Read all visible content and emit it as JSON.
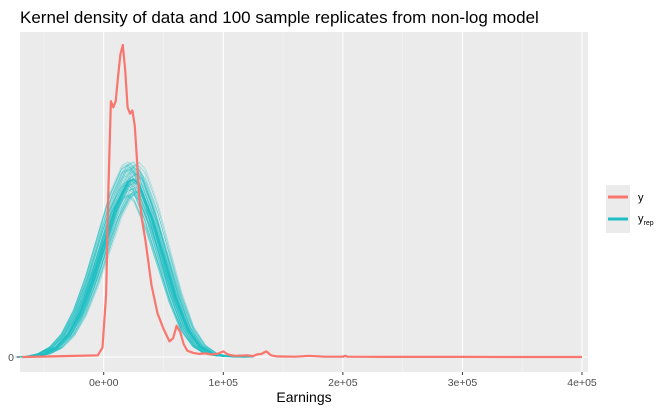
{
  "chart_data": {
    "type": "line",
    "title": "Kernel density of data and 100 sample replicates from non-log model",
    "xlabel": "Earnings",
    "ylabel": "",
    "xlim": [
      -70000,
      405000
    ],
    "ylim": [
      0,
      1
    ],
    "y_ticks": [
      {
        "value": 0,
        "label": "0"
      }
    ],
    "x_ticks": [
      {
        "value": 0,
        "label": "0e+00"
      },
      {
        "value": 100000,
        "label": "1e+05"
      },
      {
        "value": 200000,
        "label": "2e+05"
      },
      {
        "value": 300000,
        "label": "3e+05"
      },
      {
        "value": 400000,
        "label": "4e+05"
      }
    ],
    "grid": true,
    "legend_position": "right",
    "legend_entries": [
      {
        "label": "y",
        "subscript": "",
        "color": "#F8766D"
      },
      {
        "label": "y",
        "subscript": "rep",
        "color": "#1FBEC3"
      }
    ],
    "series": [
      {
        "name": "y",
        "color": "#F8766D",
        "x": [
          -68000,
          -5000,
          -1000,
          2000,
          4000,
          6000,
          8000,
          10000,
          12000,
          14000,
          16000,
          18000,
          20000,
          22000,
          24000,
          26000,
          28000,
          30000,
          32000,
          35000,
          40000,
          45000,
          50000,
          55000,
          58000,
          61000,
          64000,
          67000,
          70000,
          75000,
          80000,
          85000,
          90000,
          95000,
          100000,
          103000,
          106000,
          110000,
          120000,
          125000,
          128000,
          132000,
          136000,
          140000,
          145000,
          160000,
          172000,
          185000,
          200000,
          202000,
          204000,
          220000,
          250000,
          300000,
          350000,
          400000
        ],
        "y": [
          0,
          0.005,
          0.03,
          0.2,
          0.55,
          0.82,
          0.8,
          0.82,
          0.9,
          0.97,
          1.0,
          0.92,
          0.8,
          0.78,
          0.79,
          0.74,
          0.62,
          0.5,
          0.44,
          0.37,
          0.23,
          0.14,
          0.09,
          0.05,
          0.06,
          0.1,
          0.08,
          0.04,
          0.02,
          0.013,
          0.01,
          0.012,
          0.008,
          0.01,
          0.018,
          0.01,
          0.006,
          0.004,
          0.005,
          0.003,
          0.008,
          0.01,
          0.018,
          0.005,
          0.002,
          0.001,
          0.004,
          0.001,
          0.001,
          0.004,
          0.001,
          0.0005,
          0.0003,
          0.0002,
          0.0001,
          0
        ]
      },
      {
        "name": "y_rep",
        "color": "#1FBEC3",
        "replicates": 100,
        "x": [
          -68000,
          -60000,
          -50000,
          -40000,
          -30000,
          -20000,
          -10000,
          0,
          10000,
          20000,
          25000,
          30000,
          40000,
          50000,
          60000,
          70000,
          80000,
          90000,
          100000,
          110000,
          120000
        ],
        "y": [
          0,
          0.002,
          0.01,
          0.03,
          0.07,
          0.14,
          0.24,
          0.36,
          0.48,
          0.56,
          0.57,
          0.55,
          0.45,
          0.32,
          0.19,
          0.09,
          0.035,
          0.01,
          0.003,
          0.001,
          0
        ]
      }
    ]
  }
}
